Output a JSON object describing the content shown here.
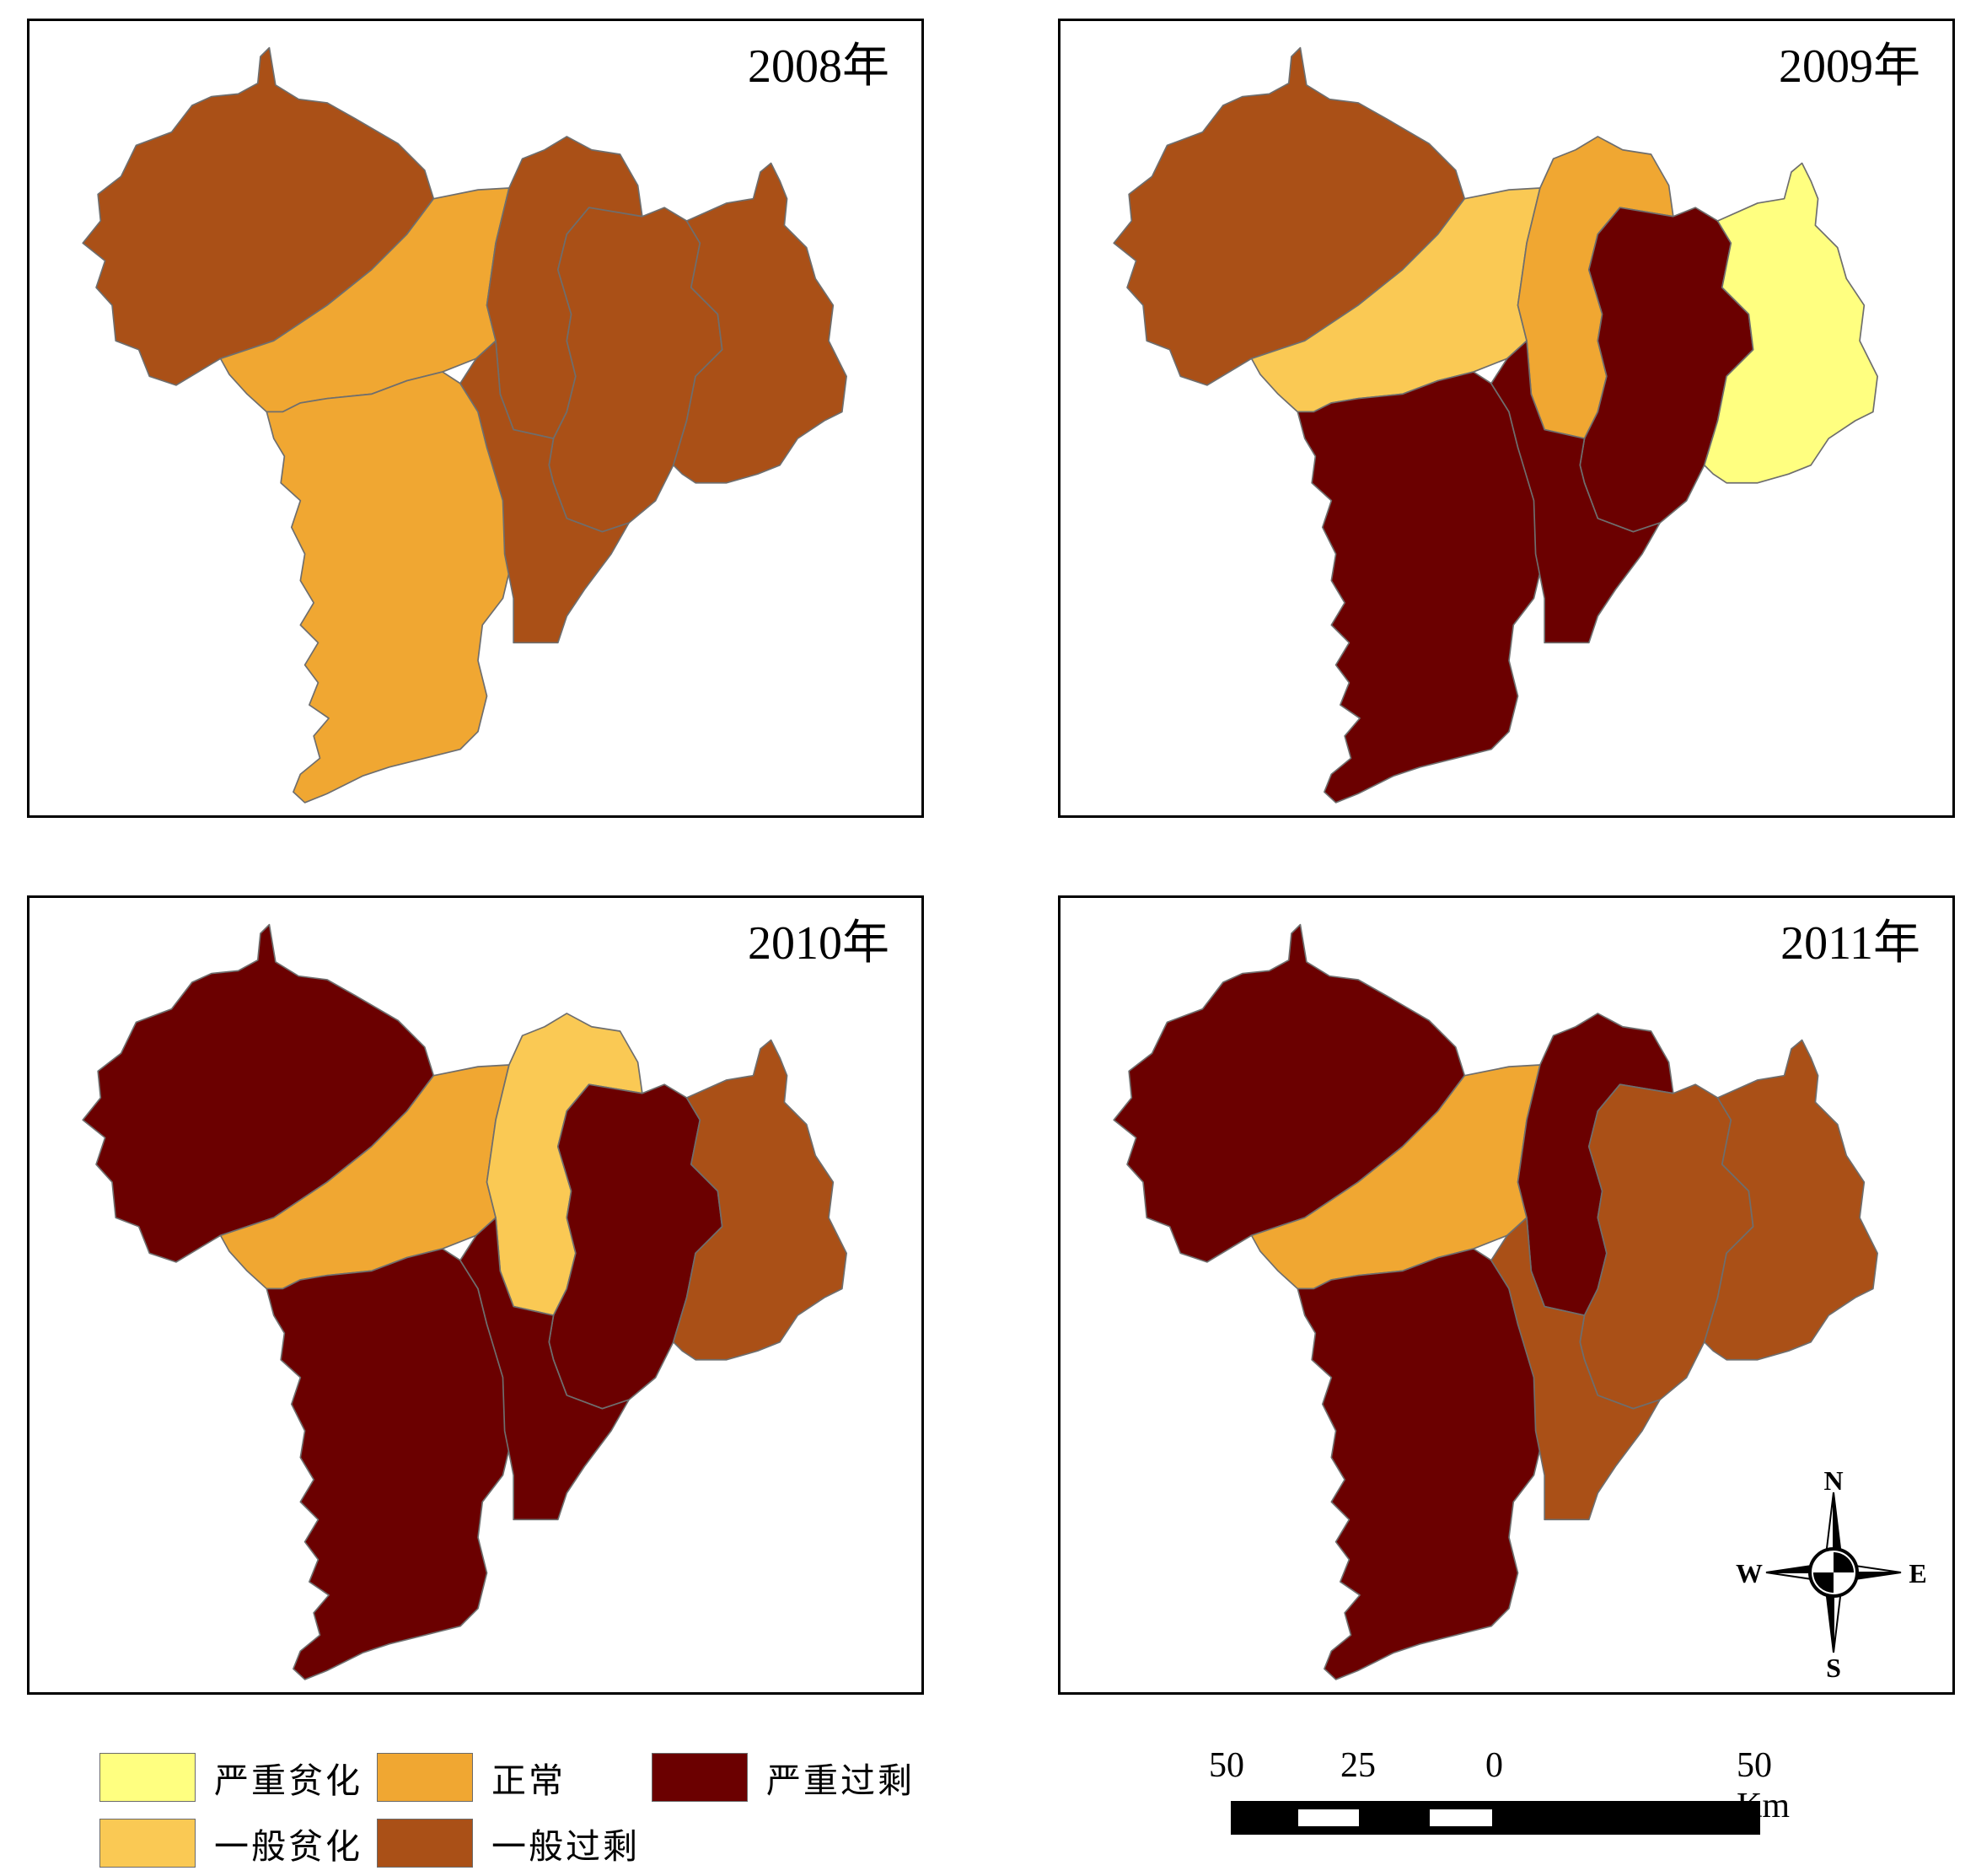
{
  "panels": [
    {
      "title": "2008年",
      "classes": {
        "nw": "c4",
        "center": "c3",
        "nc": "c4",
        "ne": "c4",
        "east": "c4",
        "south": "c3",
        "se": "c4"
      }
    },
    {
      "title": "2009年",
      "classes": {
        "nw": "c4",
        "center": "c2",
        "nc": "c3",
        "ne": "c5",
        "east": "c1",
        "south": "c5",
        "se": "c5"
      }
    },
    {
      "title": "2010年",
      "classes": {
        "nw": "c5",
        "center": "c3",
        "nc": "c2",
        "ne": "c5",
        "east": "c4",
        "south": "c5",
        "se": "c5"
      }
    },
    {
      "title": "2011年",
      "classes": {
        "nw": "c5",
        "center": "c3",
        "nc": "c5",
        "ne": "c4",
        "east": "c4",
        "south": "c5",
        "se": "c4"
      }
    }
  ],
  "legend": {
    "items": [
      {
        "id": "c1",
        "label": "严重贫化",
        "color": "#ffff80"
      },
      {
        "id": "c2",
        "label": "一般贫化",
        "color": "#fac954"
      },
      {
        "id": "c3",
        "label": "正常",
        "color": "#f0a732"
      },
      {
        "id": "c4",
        "label": "一般过剩",
        "color": "#aa5017"
      },
      {
        "id": "c5",
        "label": "严重过剩",
        "color": "#6b0000"
      }
    ]
  },
  "scale_bar": {
    "labels": [
      "50",
      "25",
      "0",
      "50 Km"
    ]
  },
  "compass": {
    "n": "N",
    "s": "S",
    "e": "E",
    "w": "W"
  },
  "style": {
    "boundary_color": "#6e6e6e",
    "frame_color": "#000000"
  }
}
